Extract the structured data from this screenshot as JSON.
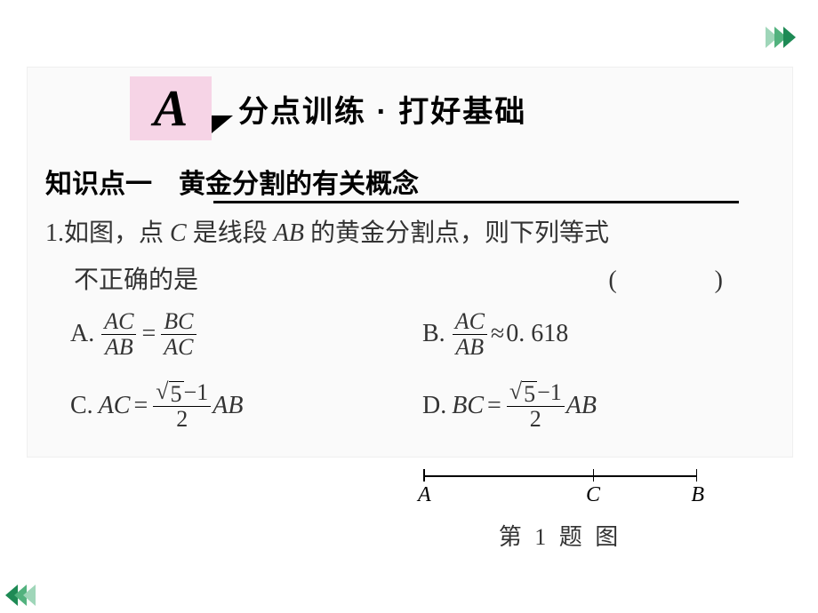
{
  "nav": {
    "chevron_color_light": "#9fd6b9",
    "chevron_color_mid": "#52b27e",
    "chevron_color_dark": "#1e8a55"
  },
  "header": {
    "box_letter": "A",
    "box_bg": "#f6d4e6",
    "title": "分点训练 · 打好基础"
  },
  "kpoint": {
    "label": "知识点一　黄金分割的有关概念"
  },
  "question": {
    "num": "1.",
    "stem_1": "如图，点 C 是线段 AB 的黄金分割点，则下列等式",
    "stem_2": "不正确的是",
    "paren": "(　　)"
  },
  "options": {
    "A": {
      "label": "A.",
      "lhs_num": "AC",
      "lhs_den": "AB",
      "op": "=",
      "rhs_num": "BC",
      "rhs_den": "AC"
    },
    "B": {
      "label": "B.",
      "lhs_num": "AC",
      "lhs_den": "AB",
      "op": "≈",
      "rhs_text": "0. 618"
    },
    "C": {
      "label": "C.",
      "lhs_text": "AC",
      "op": "=",
      "frac_num_sqrt": "5",
      "frac_num_tail": "−1",
      "frac_den": "2",
      "rhs_text": "AB"
    },
    "D": {
      "label": "D.",
      "lhs_text": "BC",
      "op": "=",
      "frac_num_sqrt": "5",
      "frac_num_tail": "−1",
      "frac_den": "2",
      "rhs_text": "AB"
    }
  },
  "figure": {
    "A": "A",
    "C": "C",
    "B": "B",
    "caption": "第 1 题 图",
    "C_position_pct": 62
  },
  "style": {
    "body_font_size": 28,
    "heading_font_size": 34,
    "bg": "#ffffff",
    "box_bg": "#fafafa"
  }
}
